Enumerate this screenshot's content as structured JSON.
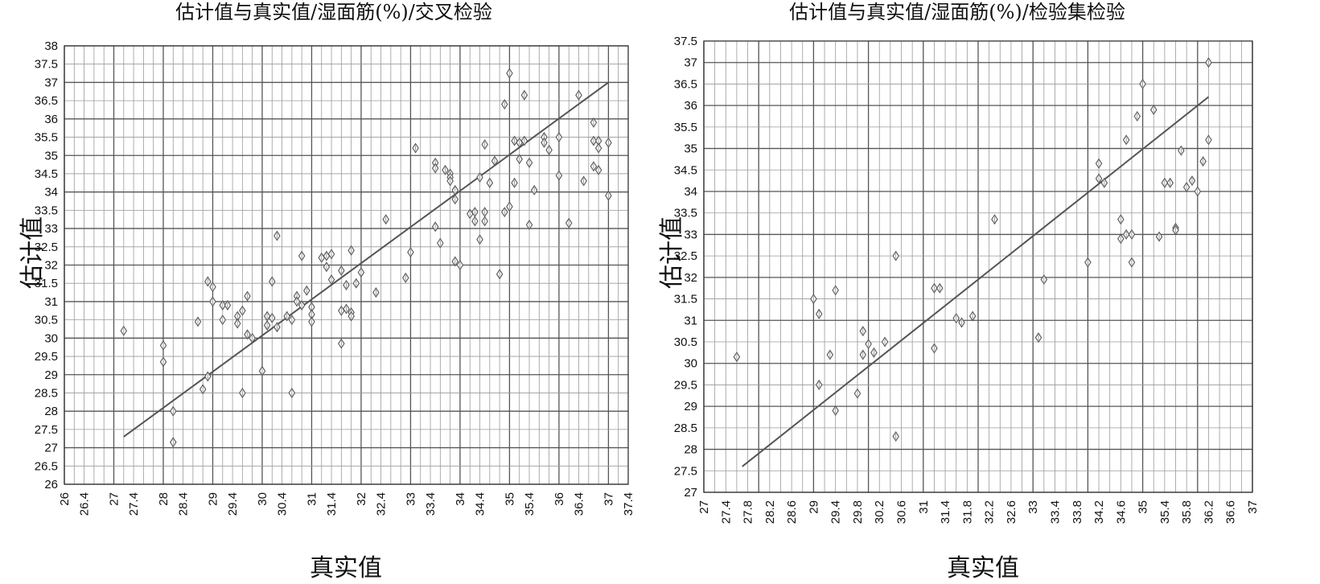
{
  "chart_data": [
    {
      "type": "scatter",
      "title": "估计值与真实值/湿面筋(%)/交叉检验",
      "xlabel": "真实值",
      "ylabel": "估计值",
      "xlim": [
        26,
        37.4
      ],
      "ylim": [
        26,
        38
      ],
      "x_ticks": [
        "26",
        "26.4",
        "27",
        "27.4",
        "28",
        "28.4",
        "29",
        "29.4",
        "30",
        "30.4",
        "31",
        "31.4",
        "32",
        "32.4",
        "33",
        "33.4",
        "34",
        "34.4",
        "35",
        "35.4",
        "36",
        "36.4",
        "37",
        "37.4"
      ],
      "y_ticks": [
        "26",
        "26.5",
        "27",
        "27.5",
        "28",
        "28.5",
        "29",
        "29.5",
        "30",
        "30.5",
        "31",
        "31.5",
        "32",
        "32.5",
        "33",
        "33.5",
        "34",
        "34.5",
        "35",
        "35.5",
        "36",
        "36.5",
        "37",
        "37.5",
        "38"
      ],
      "grid": true,
      "marker": "diamond",
      "fit_line": {
        "x": [
          27.2,
          37.0
        ],
        "y": [
          27.3,
          37.0
        ]
      },
      "points": [
        [
          27.2,
          30.2
        ],
        [
          28.0,
          29.8
        ],
        [
          28.0,
          29.35
        ],
        [
          28.2,
          28.0
        ],
        [
          28.2,
          27.15
        ],
        [
          28.7,
          30.45
        ],
        [
          28.8,
          28.6
        ],
        [
          28.9,
          28.95
        ],
        [
          28.9,
          31.55
        ],
        [
          29.0,
          31.4
        ],
        [
          29.0,
          31.0
        ],
        [
          29.2,
          30.9
        ],
        [
          29.2,
          30.5
        ],
        [
          29.3,
          30.9
        ],
        [
          29.5,
          30.6
        ],
        [
          29.5,
          30.4
        ],
        [
          29.6,
          30.75
        ],
        [
          29.6,
          28.5
        ],
        [
          29.7,
          31.15
        ],
        [
          29.7,
          30.1
        ],
        [
          29.8,
          30.0
        ],
        [
          30.0,
          29.1
        ],
        [
          30.1,
          30.6
        ],
        [
          30.1,
          30.35
        ],
        [
          30.2,
          30.55
        ],
        [
          30.2,
          31.55
        ],
        [
          30.3,
          32.8
        ],
        [
          30.3,
          30.3
        ],
        [
          30.5,
          30.6
        ],
        [
          30.6,
          30.5
        ],
        [
          30.6,
          28.5
        ],
        [
          30.7,
          31.15
        ],
        [
          30.7,
          31.0
        ],
        [
          30.8,
          32.25
        ],
        [
          30.8,
          30.9
        ],
        [
          30.9,
          31.3
        ],
        [
          31.0,
          30.85
        ],
        [
          31.0,
          30.65
        ],
        [
          31.0,
          30.45
        ],
        [
          31.2,
          32.2
        ],
        [
          31.3,
          32.25
        ],
        [
          31.3,
          31.95
        ],
        [
          31.4,
          32.3
        ],
        [
          31.4,
          31.6
        ],
        [
          31.6,
          31.85
        ],
        [
          31.6,
          30.75
        ],
        [
          31.6,
          29.85
        ],
        [
          31.7,
          31.45
        ],
        [
          31.7,
          30.8
        ],
        [
          31.8,
          32.4
        ],
        [
          31.8,
          30.7
        ],
        [
          31.8,
          30.6
        ],
        [
          31.9,
          31.5
        ],
        [
          32.0,
          31.8
        ],
        [
          32.3,
          31.25
        ],
        [
          32.5,
          33.25
        ],
        [
          32.9,
          31.65
        ],
        [
          33.0,
          32.35
        ],
        [
          33.1,
          35.2
        ],
        [
          33.5,
          34.8
        ],
        [
          33.5,
          34.65
        ],
        [
          33.5,
          33.05
        ],
        [
          33.6,
          32.6
        ],
        [
          33.7,
          34.6
        ],
        [
          33.8,
          34.5
        ],
        [
          33.8,
          34.4
        ],
        [
          33.8,
          34.3
        ],
        [
          33.9,
          32.1
        ],
        [
          33.9,
          33.8
        ],
        [
          33.9,
          34.05
        ],
        [
          34.0,
          32.0
        ],
        [
          34.2,
          33.4
        ],
        [
          34.3,
          33.45
        ],
        [
          34.3,
          33.2
        ],
        [
          34.4,
          34.4
        ],
        [
          34.4,
          32.7
        ],
        [
          34.5,
          35.3
        ],
        [
          34.5,
          33.45
        ],
        [
          34.5,
          33.2
        ],
        [
          34.6,
          34.25
        ],
        [
          34.7,
          34.85
        ],
        [
          34.8,
          31.75
        ],
        [
          34.9,
          36.4
        ],
        [
          34.9,
          33.45
        ],
        [
          35.0,
          37.25
        ],
        [
          35.0,
          33.6
        ],
        [
          35.1,
          35.4
        ],
        [
          35.1,
          34.25
        ],
        [
          35.2,
          35.35
        ],
        [
          35.2,
          34.9
        ],
        [
          35.3,
          35.4
        ],
        [
          35.3,
          36.65
        ],
        [
          35.4,
          34.8
        ],
        [
          35.4,
          33.1
        ],
        [
          35.5,
          34.05
        ],
        [
          35.7,
          35.5
        ],
        [
          35.7,
          35.35
        ],
        [
          35.8,
          35.15
        ],
        [
          36.0,
          35.5
        ],
        [
          36.0,
          34.45
        ],
        [
          36.2,
          33.15
        ],
        [
          36.4,
          36.65
        ],
        [
          36.5,
          34.3
        ],
        [
          36.7,
          35.9
        ],
        [
          36.7,
          35.4
        ],
        [
          36.7,
          34.7
        ],
        [
          36.8,
          35.4
        ],
        [
          36.8,
          35.2
        ],
        [
          36.8,
          34.6
        ],
        [
          37.0,
          35.35
        ],
        [
          37.0,
          33.9
        ]
      ]
    },
    {
      "type": "scatter",
      "title": "估计值与真实值/湿面筋(%)/检验集检验",
      "xlabel": "真实值",
      "ylabel": "估计值",
      "xlim": [
        27,
        37
      ],
      "ylim": [
        27,
        37.5
      ],
      "x_ticks": [
        "27",
        "27.4",
        "27.8",
        "28.2",
        "28.6",
        "29",
        "29.4",
        "29.8",
        "30.2",
        "30.6",
        "31",
        "31.4",
        "31.8",
        "32.2",
        "32.6",
        "33",
        "33.4",
        "33.8",
        "34.2",
        "34.6",
        "35",
        "35.4",
        "35.8",
        "36.2",
        "36.6",
        "37"
      ],
      "y_ticks": [
        "27",
        "27.5",
        "28",
        "28.5",
        "29",
        "29.5",
        "30",
        "30.5",
        "31",
        "31.5",
        "32",
        "32.5",
        "33",
        "33.5",
        "34",
        "34.5",
        "35",
        "35.5",
        "36",
        "36.5",
        "37",
        "37.5"
      ],
      "grid": true,
      "marker": "diamond",
      "fit_line": {
        "x": [
          27.7,
          36.2
        ],
        "y": [
          27.6,
          36.2
        ]
      },
      "points": [
        [
          27.6,
          30.15
        ],
        [
          29.0,
          31.5
        ],
        [
          29.1,
          31.15
        ],
        [
          29.1,
          29.5
        ],
        [
          29.3,
          30.2
        ],
        [
          29.4,
          31.7
        ],
        [
          29.4,
          28.9
        ],
        [
          29.8,
          29.3
        ],
        [
          29.9,
          30.75
        ],
        [
          29.9,
          30.2
        ],
        [
          30.0,
          30.45
        ],
        [
          30.1,
          30.25
        ],
        [
          30.3,
          30.5
        ],
        [
          30.5,
          32.5
        ],
        [
          30.5,
          28.3
        ],
        [
          31.2,
          31.75
        ],
        [
          31.2,
          30.35
        ],
        [
          31.3,
          31.75
        ],
        [
          31.6,
          31.05
        ],
        [
          31.7,
          30.95
        ],
        [
          31.9,
          31.1
        ],
        [
          32.3,
          33.35
        ],
        [
          33.1,
          30.6
        ],
        [
          33.2,
          31.95
        ],
        [
          34.0,
          32.35
        ],
        [
          34.2,
          34.65
        ],
        [
          34.2,
          34.3
        ],
        [
          34.3,
          34.2
        ],
        [
          34.6,
          33.35
        ],
        [
          34.6,
          32.9
        ],
        [
          34.7,
          35.2
        ],
        [
          34.7,
          33.0
        ],
        [
          34.8,
          33.0
        ],
        [
          34.8,
          32.35
        ],
        [
          34.9,
          35.75
        ],
        [
          35.0,
          36.5
        ],
        [
          35.2,
          35.9
        ],
        [
          35.3,
          32.95
        ],
        [
          35.4,
          34.2
        ],
        [
          35.5,
          34.2
        ],
        [
          35.6,
          33.15
        ],
        [
          35.6,
          33.1
        ],
        [
          35.7,
          34.95
        ],
        [
          35.8,
          34.1
        ],
        [
          35.9,
          34.25
        ],
        [
          36.0,
          34.0
        ],
        [
          36.1,
          34.7
        ],
        [
          36.2,
          37.0
        ],
        [
          36.2,
          35.2
        ]
      ]
    }
  ]
}
